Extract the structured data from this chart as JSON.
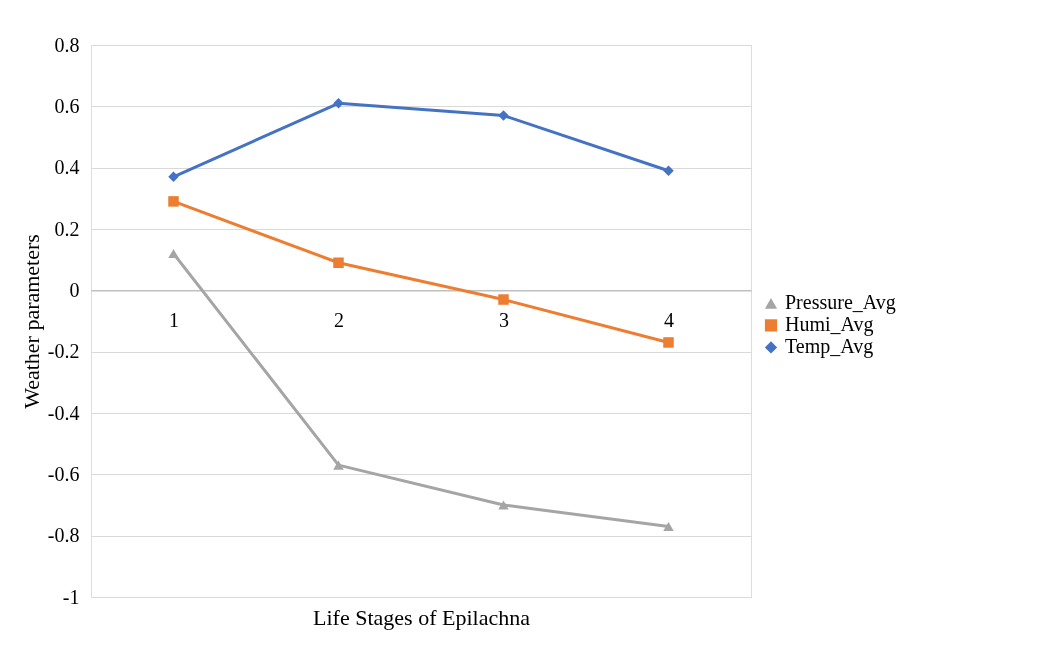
{
  "chart_data": {
    "type": "line",
    "xlabel": "Life Stages of Epilachna",
    "ylabel": "Weather parameters",
    "categories": [
      "1",
      "2",
      "3",
      "4"
    ],
    "series": [
      {
        "name": "Pressure_Avg",
        "color": "#a5a5a5",
        "marker": "triangle",
        "values": [
          0.12,
          -0.57,
          -0.7,
          -0.77
        ]
      },
      {
        "name": "Humi_Avg",
        "color": "#ed7d31",
        "marker": "square",
        "values": [
          0.29,
          0.09,
          -0.03,
          -0.17
        ]
      },
      {
        "name": "Temp_Avg",
        "color": "#4472c4",
        "marker": "diamond",
        "values": [
          0.37,
          0.61,
          0.57,
          0.39
        ]
      }
    ],
    "ylim": [
      -1,
      0.8
    ],
    "yticks": [
      -1,
      -0.8,
      -0.6,
      -0.4,
      -0.2,
      0,
      0.2,
      0.4,
      0.6,
      0.8
    ],
    "grid": "y",
    "legend": "right",
    "line_style": "solid"
  }
}
